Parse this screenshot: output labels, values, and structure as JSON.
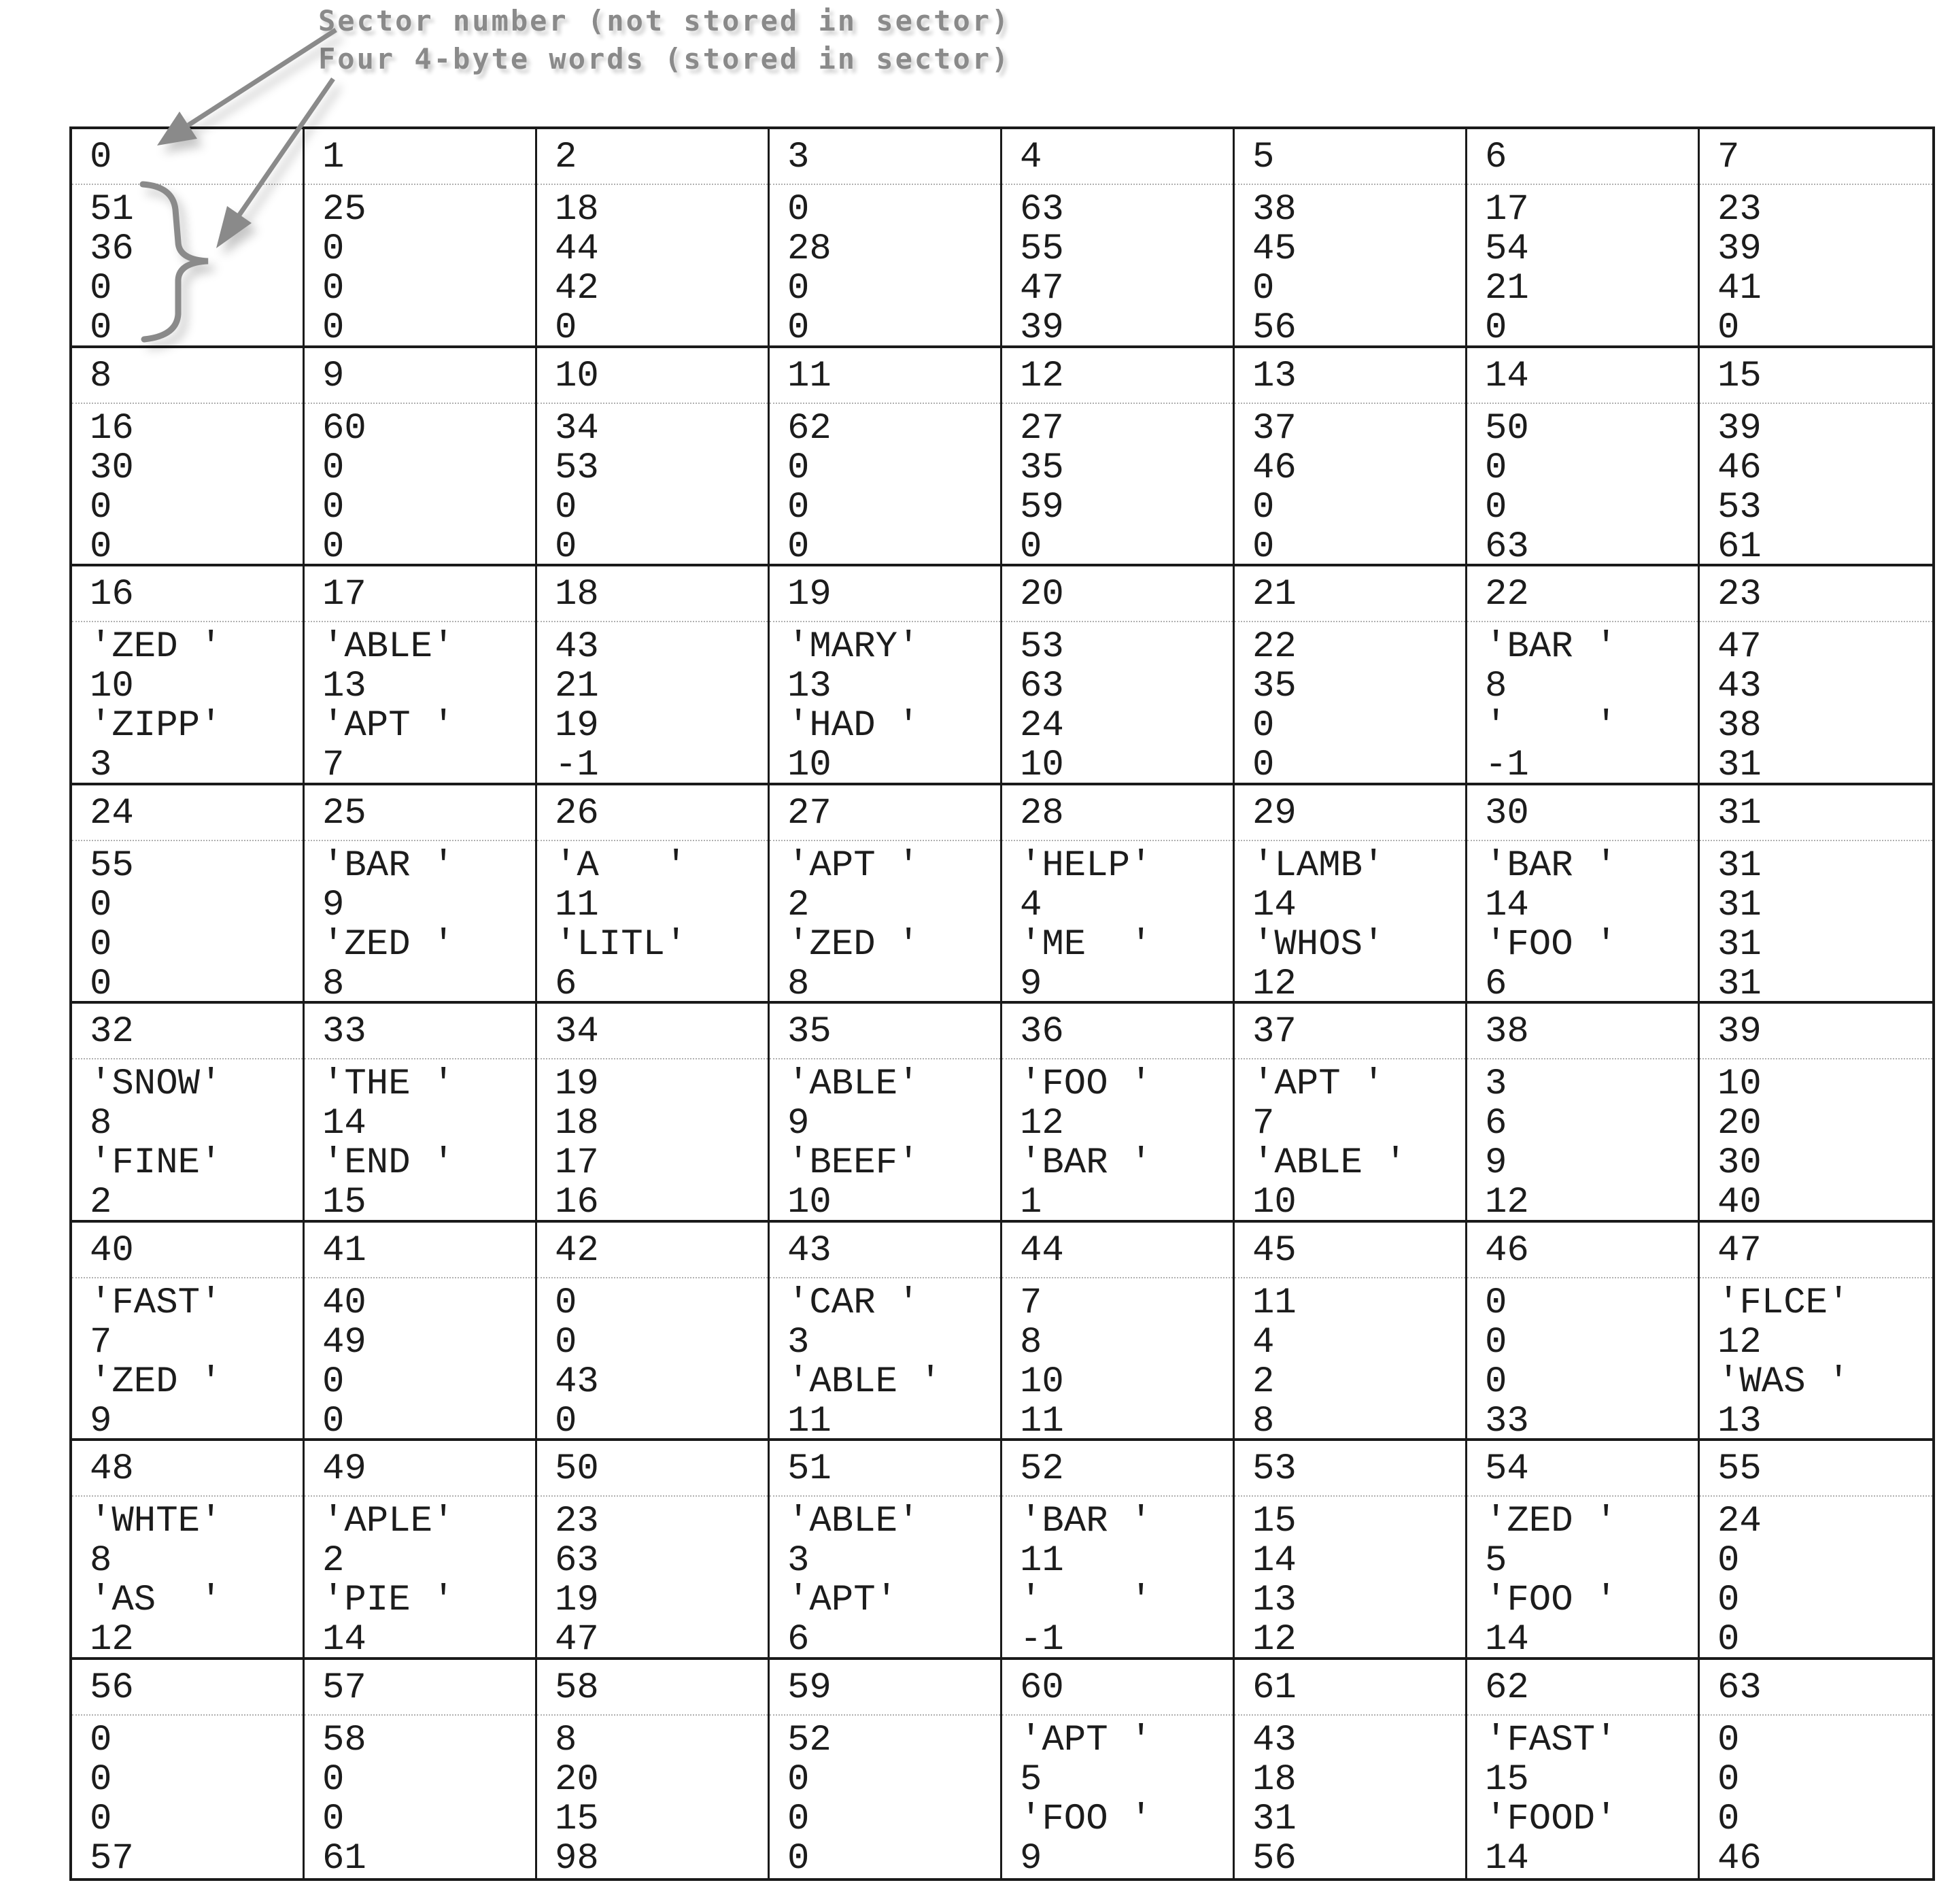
{
  "annotations": {
    "sector_number_label": "Sector number (not stored in sector)",
    "words_label": "Four 4-byte words (stored in sector)"
  },
  "colors": {
    "text": "#1c1c1c",
    "border": "#1a1a1a",
    "dotted_separator": "#b0b0b0",
    "annotation_gray": "#8a8a8a"
  },
  "sectors": [
    {
      "number": "0",
      "words": [
        "51",
        "36",
        "0",
        "0"
      ]
    },
    {
      "number": "1",
      "words": [
        "25",
        "0",
        "0",
        "0"
      ]
    },
    {
      "number": "2",
      "words": [
        "18",
        "44",
        "42",
        "0"
      ]
    },
    {
      "number": "3",
      "words": [
        "0",
        "28",
        "0",
        "0"
      ]
    },
    {
      "number": "4",
      "words": [
        "63",
        "55",
        "47",
        "39"
      ]
    },
    {
      "number": "5",
      "words": [
        "38",
        "45",
        "0",
        "56"
      ]
    },
    {
      "number": "6",
      "words": [
        "17",
        "54",
        "21",
        "0"
      ]
    },
    {
      "number": "7",
      "words": [
        "23",
        "39",
        "41",
        "0"
      ]
    },
    {
      "number": "8",
      "words": [
        "16",
        "30",
        "0",
        "0"
      ]
    },
    {
      "number": "9",
      "words": [
        "60",
        "0",
        "0",
        "0"
      ]
    },
    {
      "number": "10",
      "words": [
        "34",
        "53",
        "0",
        "0"
      ]
    },
    {
      "number": "11",
      "words": [
        "62",
        "0",
        "0",
        "0"
      ]
    },
    {
      "number": "12",
      "words": [
        "27",
        "35",
        "59",
        "0"
      ]
    },
    {
      "number": "13",
      "words": [
        "37",
        "46",
        "0",
        "0"
      ]
    },
    {
      "number": "14",
      "words": [
        "50",
        "0",
        "0",
        "63"
      ]
    },
    {
      "number": "15",
      "words": [
        "39",
        "46",
        "53",
        "61"
      ]
    },
    {
      "number": "16",
      "words": [
        "'ZED '",
        "10",
        "'ZIPP'",
        "3"
      ]
    },
    {
      "number": "17",
      "words": [
        "'ABLE'",
        "13",
        "'APT '",
        "7"
      ]
    },
    {
      "number": "18",
      "words": [
        "43",
        "21",
        "19",
        "-1"
      ]
    },
    {
      "number": "19",
      "words": [
        "'MARY'",
        "13",
        "'HAD '",
        "10"
      ]
    },
    {
      "number": "20",
      "words": [
        "53",
        "63",
        "24",
        "10"
      ]
    },
    {
      "number": "21",
      "words": [
        "22",
        "35",
        "0",
        "0"
      ]
    },
    {
      "number": "22",
      "words": [
        "'BAR '",
        "8",
        "'    '",
        "-1"
      ]
    },
    {
      "number": "23",
      "words": [
        "47",
        "43",
        "38",
        "31"
      ]
    },
    {
      "number": "24",
      "words": [
        "55",
        "0",
        "0",
        "0"
      ]
    },
    {
      "number": "25",
      "words": [
        "'BAR '",
        "9",
        "'ZED '",
        "8"
      ]
    },
    {
      "number": "26",
      "words": [
        "'A   '",
        "11",
        "'LITL'",
        "6"
      ]
    },
    {
      "number": "27",
      "words": [
        "'APT '",
        "2",
        "'ZED '",
        "8"
      ]
    },
    {
      "number": "28",
      "words": [
        "'HELP'",
        "4",
        "'ME  '",
        "9"
      ]
    },
    {
      "number": "29",
      "words": [
        "'LAMB'",
        "14",
        "'WHOS'",
        "12"
      ]
    },
    {
      "number": "30",
      "words": [
        "'BAR '",
        "14",
        "'FOO '",
        "6"
      ]
    },
    {
      "number": "31",
      "words": [
        "31",
        "31",
        "31",
        "31"
      ]
    },
    {
      "number": "32",
      "words": [
        "'SNOW'",
        "8",
        "'FINE'",
        "2"
      ]
    },
    {
      "number": "33",
      "words": [
        "'THE '",
        "14",
        "'END '",
        "15"
      ]
    },
    {
      "number": "34",
      "words": [
        "19",
        "18",
        "17",
        "16"
      ]
    },
    {
      "number": "35",
      "words": [
        "'ABLE'",
        "9",
        "'BEEF'",
        "10"
      ]
    },
    {
      "number": "36",
      "words": [
        "'FOO '",
        "12",
        "'BAR '",
        "1"
      ]
    },
    {
      "number": "37",
      "words": [
        "'APT '",
        "7",
        "'ABLE '",
        "10"
      ]
    },
    {
      "number": "38",
      "words": [
        "3",
        "6",
        "9",
        "12"
      ]
    },
    {
      "number": "39",
      "words": [
        "10",
        "20",
        "30",
        "40"
      ]
    },
    {
      "number": "40",
      "words": [
        "'FAST'",
        "7",
        "'ZED '",
        "9"
      ]
    },
    {
      "number": "41",
      "words": [
        "40",
        "49",
        "0",
        "0"
      ]
    },
    {
      "number": "42",
      "words": [
        "0",
        "0",
        "43",
        "0"
      ]
    },
    {
      "number": "43",
      "words": [
        "'CAR '",
        "3",
        "'ABLE '",
        "11"
      ]
    },
    {
      "number": "44",
      "words": [
        "7",
        "8",
        "10",
        "11"
      ]
    },
    {
      "number": "45",
      "words": [
        "11",
        "4",
        "2",
        "8"
      ]
    },
    {
      "number": "46",
      "words": [
        "0",
        "0",
        "0",
        "33"
      ]
    },
    {
      "number": "47",
      "words": [
        "'FLCE'",
        "12",
        "'WAS '",
        "13"
      ]
    },
    {
      "number": "48",
      "words": [
        "'WHTE'",
        "8",
        "'AS  '",
        "12"
      ]
    },
    {
      "number": "49",
      "words": [
        "'APLE'",
        "2",
        "'PIE '",
        "14"
      ]
    },
    {
      "number": "50",
      "words": [
        "23",
        "63",
        "19",
        "47"
      ]
    },
    {
      "number": "51",
      "words": [
        "'ABLE'",
        "3",
        "'APT'",
        "6"
      ]
    },
    {
      "number": "52",
      "words": [
        "'BAR '",
        "11",
        "'    '",
        "-1"
      ]
    },
    {
      "number": "53",
      "words": [
        "15",
        "14",
        "13",
        "12"
      ]
    },
    {
      "number": "54",
      "words": [
        "'ZED '",
        "5",
        "'FOO '",
        "14"
      ]
    },
    {
      "number": "55",
      "words": [
        "24",
        "0",
        "0",
        "0"
      ]
    },
    {
      "number": "56",
      "words": [
        "0",
        "0",
        "0",
        "57"
      ]
    },
    {
      "number": "57",
      "words": [
        "58",
        "0",
        "0",
        "61"
      ]
    },
    {
      "number": "58",
      "words": [
        "8",
        "20",
        "15",
        "98"
      ]
    },
    {
      "number": "59",
      "words": [
        "52",
        "0",
        "0",
        "0"
      ]
    },
    {
      "number": "60",
      "words": [
        "'APT '",
        "5",
        "'FOO '",
        "9"
      ]
    },
    {
      "number": "61",
      "words": [
        "43",
        "18",
        "31",
        "56"
      ]
    },
    {
      "number": "62",
      "words": [
        "'FAST'",
        "15",
        "'FOOD'",
        "14"
      ]
    },
    {
      "number": "63",
      "words": [
        "0",
        "0",
        "0",
        "46"
      ]
    }
  ]
}
